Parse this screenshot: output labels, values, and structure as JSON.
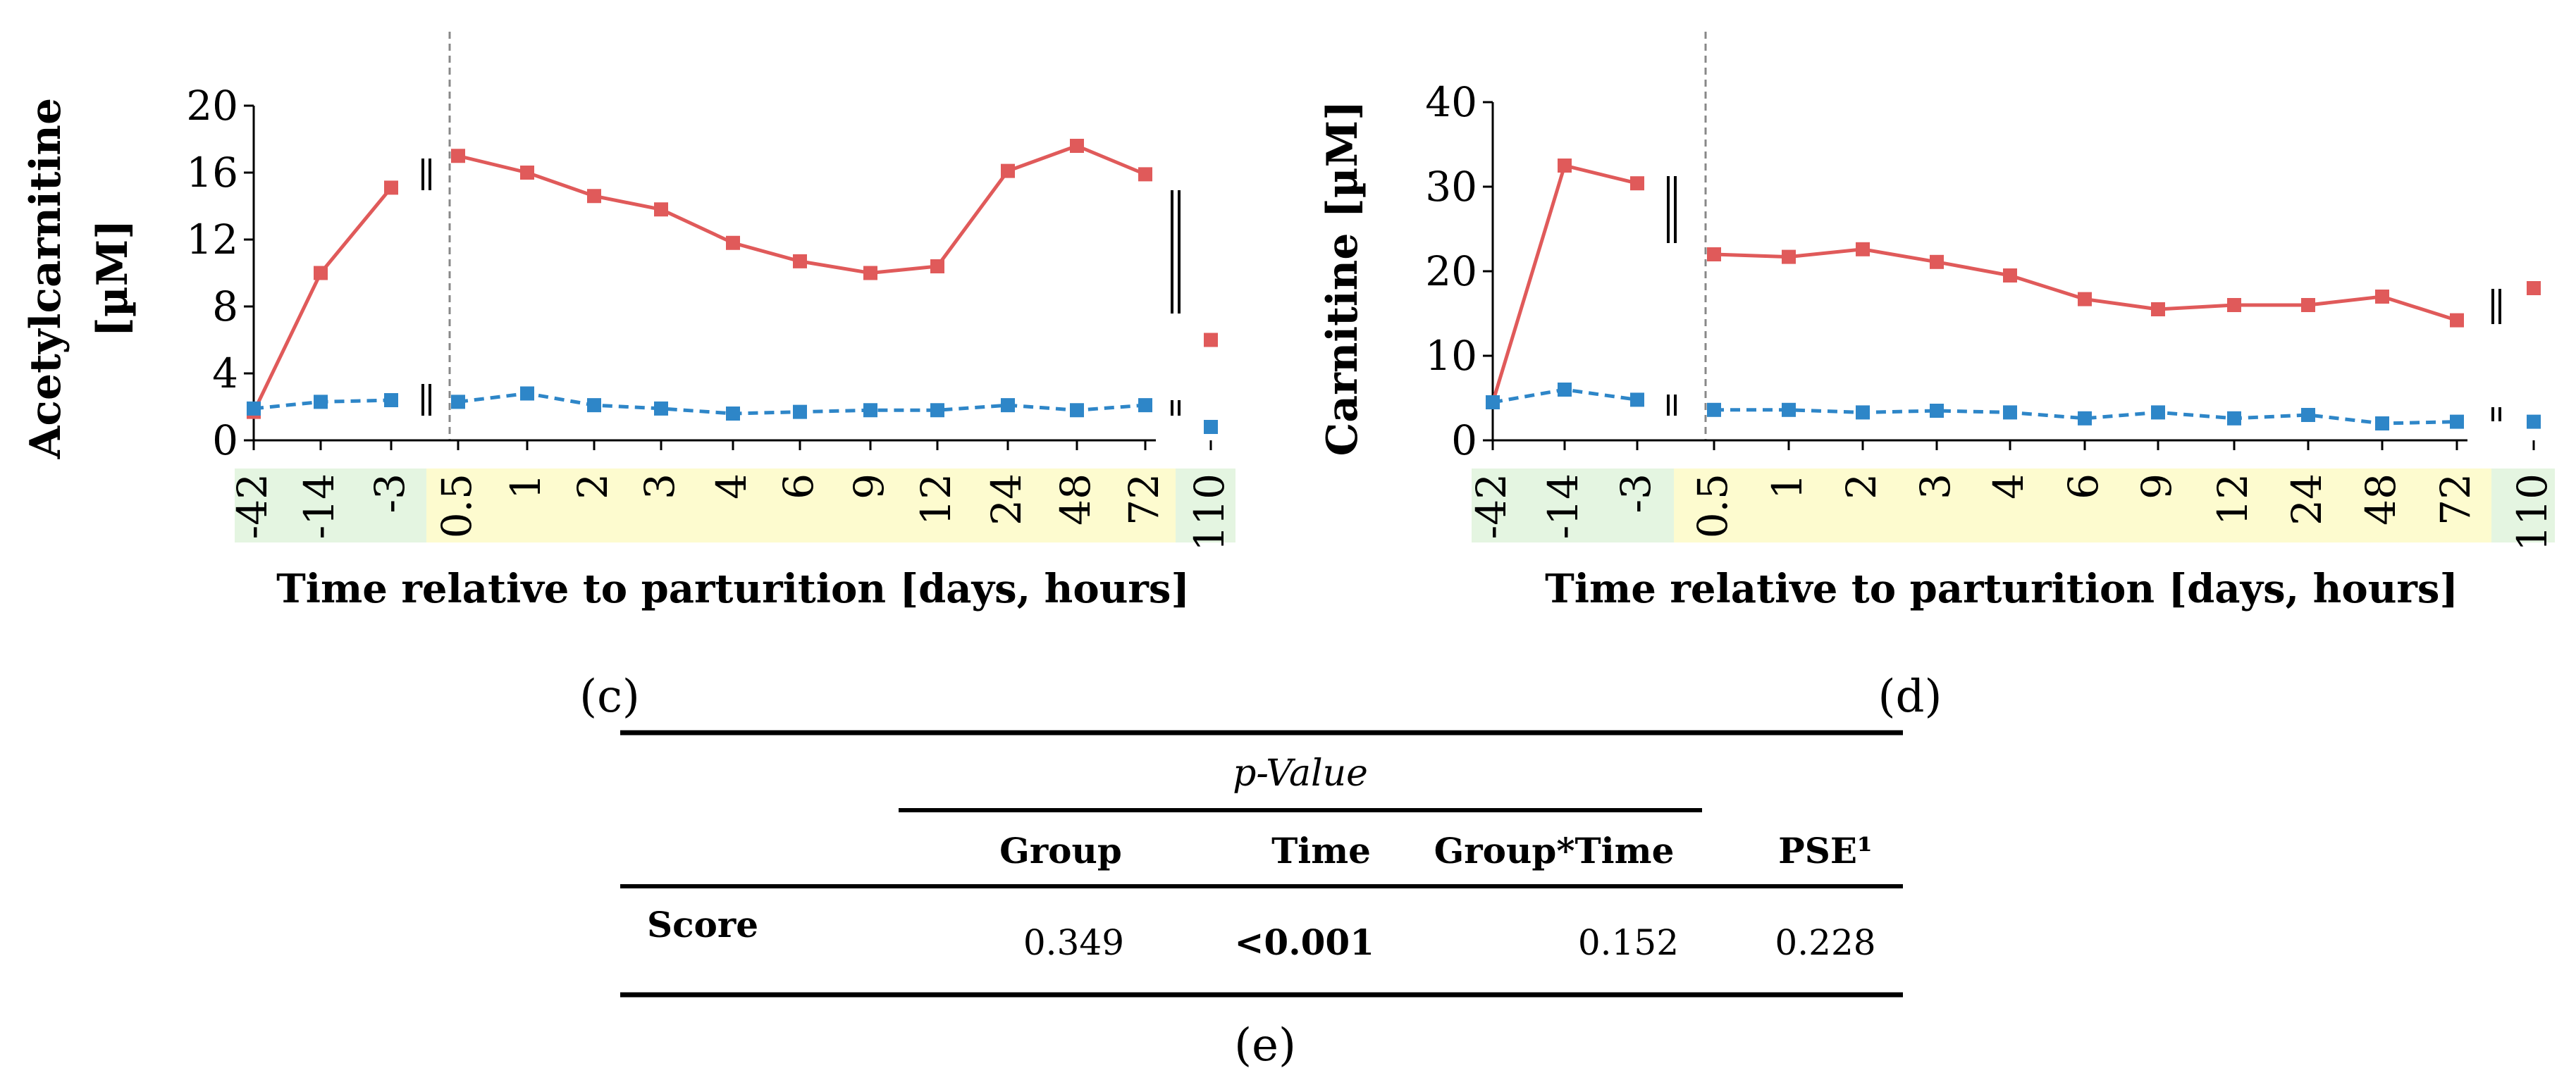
{
  "colors": {
    "red": "#e05a5a",
    "blue": "#2e86c8",
    "green_band": "#e4f5e1",
    "yellow_band": "#fdfbcf",
    "dashed_line": "#888888"
  },
  "shared": {
    "xlabel_prefix": "Time relative to parturition [",
    "xlabel_days": "days",
    "xlabel_sep": ", ",
    "xlabel_hours": "hours",
    "xlabel_suffix": "]",
    "time_labels": [
      "-42",
      "-14",
      "-3",
      "0.5",
      "1",
      "2",
      "3",
      "4",
      "6",
      "9",
      "12",
      "24",
      "48",
      "72",
      "110"
    ],
    "days_labels": [
      "-42",
      "-14",
      "-3"
    ],
    "hours_labels": [
      "0.5",
      "1",
      "2",
      "3",
      "4",
      "6",
      "9",
      "12",
      "24",
      "48",
      "72"
    ],
    "last_day_label": "110"
  },
  "chart_data": [
    {
      "type": "line",
      "panel": "(c)",
      "ylabel_line1": "Acetylcarnitine",
      "ylabel_line2": "[µM]",
      "ylim": [
        0,
        20
      ],
      "yticks": [
        "0",
        "4",
        "8",
        "12",
        "16",
        "20"
      ],
      "ytick_values": [
        0,
        4,
        8,
        12,
        16,
        20
      ],
      "categories": [
        "-42",
        "-14",
        "-3",
        "0.5",
        "1",
        "2",
        "3",
        "4",
        "6",
        "9",
        "12",
        "24",
        "48",
        "72",
        "110"
      ],
      "series": [
        {
          "name": "red",
          "style": "solid",
          "values": [
            1.7,
            10.0,
            15.1,
            17.0,
            16.0,
            14.6,
            13.8,
            11.8,
            10.7,
            10.0,
            10.4,
            16.1,
            17.6,
            15.9,
            6.0
          ]
        },
        {
          "name": "blue",
          "style": "dashed",
          "values": [
            1.9,
            2.3,
            2.4,
            2.3,
            2.8,
            2.1,
            1.9,
            1.6,
            1.7,
            1.8,
            1.8,
            2.1,
            1.8,
            2.1,
            0.8
          ]
        }
      ]
    },
    {
      "type": "line",
      "panel": "(d)",
      "ylabel_line1": "Carnitine [µM]",
      "ylabel_line2": "",
      "ylim": [
        0,
        40
      ],
      "yticks": [
        "0",
        "10",
        "20",
        "30",
        "40"
      ],
      "ytick_values": [
        0,
        10,
        20,
        30,
        40
      ],
      "categories": [
        "-42",
        "-14",
        "-3",
        "0.5",
        "1",
        "2",
        "3",
        "4",
        "6",
        "9",
        "12",
        "24",
        "48",
        "72",
        "110"
      ],
      "series": [
        {
          "name": "red",
          "style": "solid",
          "values": [
            4.5,
            32.5,
            30.4,
            22.0,
            21.7,
            22.6,
            21.1,
            19.5,
            16.7,
            15.5,
            16.0,
            16.0,
            17.0,
            14.2,
            18.0
          ]
        },
        {
          "name": "blue",
          "style": "dashed",
          "values": [
            4.5,
            6.0,
            4.8,
            3.6,
            3.6,
            3.3,
            3.5,
            3.3,
            2.6,
            3.3,
            2.6,
            3.0,
            2.0,
            2.2,
            2.2
          ]
        }
      ]
    }
  ],
  "table": {
    "panel": "(e)",
    "pvalue_header": "p-Value",
    "headers": [
      "Group",
      "Time",
      "Group*Time",
      "PSE¹"
    ],
    "row_label": "Score",
    "values": [
      "0.349",
      "<0.001",
      "0.152",
      "0.228"
    ]
  }
}
